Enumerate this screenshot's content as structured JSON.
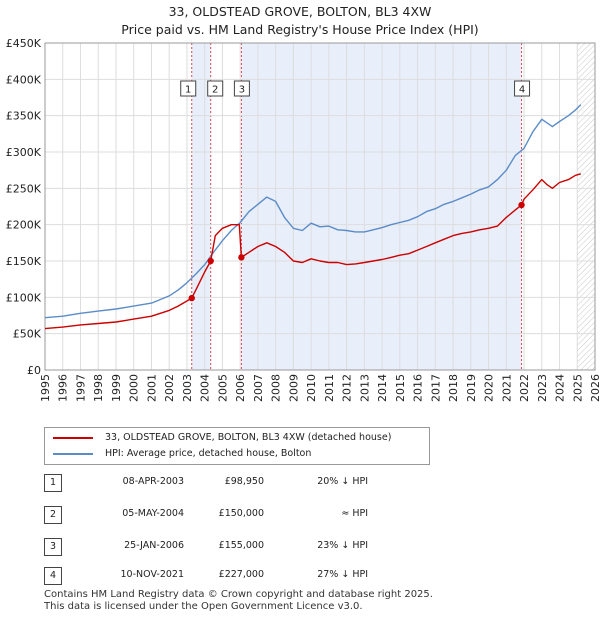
{
  "title_line1": "33, OLDSTEAD GROVE, BOLTON, BL3 4XW",
  "title_line2": "Price paid vs. HM Land Registry's House Price Index (HPI)",
  "legend": {
    "property": "33, OLDSTEAD GROVE, BOLTON, BL3 4XW (detached house)",
    "hpi": "HPI: Average price, detached house, Bolton"
  },
  "colors": {
    "property": "#cc0000",
    "hpi": "#5b8cc8",
    "band": "#e8eefa",
    "hatch": "#bbbbbb",
    "marker_line": "#cc0000"
  },
  "transactions": [
    {
      "num": "1",
      "date": "08-APR-2003",
      "price": "£98,950",
      "hpi": "20% ↓ HPI"
    },
    {
      "num": "2",
      "date": "05-MAY-2004",
      "price": "£150,000",
      "hpi": "≈ HPI"
    },
    {
      "num": "3",
      "date": "25-JAN-2006",
      "price": "£155,000",
      "hpi": "23% ↓ HPI"
    },
    {
      "num": "4",
      "date": "10-NOV-2021",
      "price": "£227,000",
      "hpi": "27% ↓ HPI"
    }
  ],
  "footer": {
    "line1": "Contains HM Land Registry data © Crown copyright and database right 2025.",
    "line2": "This data is licensed under the Open Government Licence v3.0."
  },
  "chart_data": {
    "type": "line",
    "title": "Price paid vs. HM Land Registry's House Price Index (HPI)",
    "xlabel": "",
    "ylabel": "",
    "xlim": [
      1995,
      2026
    ],
    "ylim": [
      0,
      450000
    ],
    "x_ticks": [
      1995,
      1996,
      1997,
      1998,
      1999,
      2000,
      2001,
      2002,
      2003,
      2004,
      2005,
      2006,
      2007,
      2008,
      2009,
      2010,
      2011,
      2012,
      2013,
      2014,
      2015,
      2016,
      2017,
      2018,
      2019,
      2020,
      2021,
      2022,
      2023,
      2024,
      2025,
      2026
    ],
    "y_ticks": [
      {
        "value": 0,
        "label": "£0"
      },
      {
        "value": 50000,
        "label": "£50K"
      },
      {
        "value": 100000,
        "label": "£100K"
      },
      {
        "value": 150000,
        "label": "£150K"
      },
      {
        "value": 200000,
        "label": "£200K"
      },
      {
        "value": 250000,
        "label": "£250K"
      },
      {
        "value": 300000,
        "label": "£300K"
      },
      {
        "value": 350000,
        "label": "£350K"
      },
      {
        "value": 400000,
        "label": "£400K"
      },
      {
        "value": 450000,
        "label": "£450K"
      }
    ],
    "shaded_ranges": [
      [
        2003.27,
        2004.34
      ],
      [
        2006.07,
        2021.86
      ]
    ],
    "forecast_hatch_from": 2025.0,
    "sales": [
      {
        "label": "1",
        "x": 2003.27,
        "y": 98950
      },
      {
        "label": "2",
        "x": 2004.34,
        "y": 150000
      },
      {
        "label": "3",
        "x": 2006.07,
        "y": 155000
      },
      {
        "label": "4",
        "x": 2021.86,
        "y": 227000
      }
    ],
    "series": [
      {
        "name": "HPI: Average price, detached house, Bolton",
        "x": [
          1995.0,
          1996.0,
          1997.0,
          1998.0,
          1999.0,
          2000.0,
          2001.0,
          2002.0,
          2002.5,
          2003.0,
          2003.5,
          2004.0,
          2004.5,
          2005.0,
          2005.5,
          2006.0,
          2006.5,
          2007.0,
          2007.5,
          2008.0,
          2008.5,
          2009.0,
          2009.5,
          2010.0,
          2010.5,
          2011.0,
          2011.5,
          2012.0,
          2012.5,
          2013.0,
          2013.5,
          2014.0,
          2014.5,
          2015.0,
          2015.5,
          2016.0,
          2016.5,
          2017.0,
          2017.5,
          2018.0,
          2018.5,
          2019.0,
          2019.5,
          2020.0,
          2020.5,
          2021.0,
          2021.5,
          2022.0,
          2022.5,
          2023.0,
          2023.3,
          2023.6,
          2024.0,
          2024.5,
          2024.9,
          2025.2
        ],
        "values": [
          72000,
          74000,
          78000,
          81000,
          84000,
          88000,
          92000,
          102000,
          110000,
          120000,
          132000,
          145000,
          162000,
          178000,
          192000,
          203000,
          218000,
          228000,
          238000,
          232000,
          210000,
          195000,
          192000,
          202000,
          197000,
          198000,
          193000,
          192000,
          190000,
          190000,
          193000,
          196000,
          200000,
          203000,
          206000,
          211000,
          218000,
          222000,
          228000,
          232000,
          237000,
          242000,
          248000,
          252000,
          262000,
          275000,
          295000,
          305000,
          328000,
          345000,
          340000,
          335000,
          342000,
          350000,
          358000,
          365000
        ]
      },
      {
        "name": "33, OLDSTEAD GROVE, BOLTON, BL3 4XW (detached house)",
        "x": [
          1995.0,
          1996.0,
          1997.0,
          1998.0,
          1999.0,
          2000.0,
          2001.0,
          2002.0,
          2002.5,
          2003.0,
          2003.27,
          2003.5,
          2004.0,
          2004.34,
          2004.6,
          2005.0,
          2005.5,
          2005.95,
          2006.07,
          2006.5,
          2007.0,
          2007.5,
          2008.0,
          2008.5,
          2009.0,
          2009.5,
          2010.0,
          2010.5,
          2011.0,
          2011.5,
          2012.0,
          2012.5,
          2013.0,
          2013.5,
          2014.0,
          2014.5,
          2015.0,
          2015.5,
          2016.0,
          2016.5,
          2017.0,
          2017.5,
          2018.0,
          2018.5,
          2019.0,
          2019.5,
          2020.0,
          2020.5,
          2021.0,
          2021.5,
          2021.86,
          2022.0,
          2022.5,
          2023.0,
          2023.3,
          2023.6,
          2024.0,
          2024.5,
          2024.9,
          2025.2
        ],
        "values": [
          57000,
          59000,
          62000,
          64000,
          66000,
          70000,
          74000,
          82000,
          88000,
          95000,
          98950,
          110000,
          135000,
          150000,
          185000,
          195000,
          200000,
          200000,
          155000,
          162000,
          170000,
          175000,
          170000,
          162000,
          150000,
          148000,
          153000,
          150000,
          148000,
          148000,
          145000,
          146000,
          148000,
          150000,
          152000,
          155000,
          158000,
          160000,
          165000,
          170000,
          175000,
          180000,
          185000,
          188000,
          190000,
          193000,
          195000,
          198000,
          210000,
          220000,
          227000,
          235000,
          248000,
          262000,
          255000,
          250000,
          258000,
          262000,
          268000,
          270000
        ]
      }
    ]
  }
}
